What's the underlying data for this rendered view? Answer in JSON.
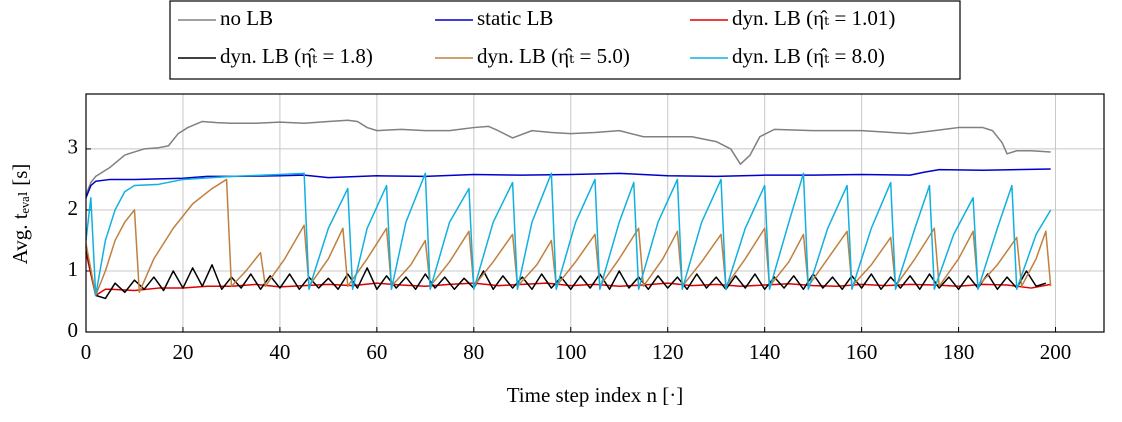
{
  "chart_data": {
    "type": "line",
    "xlabel": "Time step index n [·]",
    "ylabel": "Avg. tₑᵥₐₗ [s]",
    "xlim": [
      0,
      210
    ],
    "xticks": [
      0,
      20,
      40,
      60,
      80,
      100,
      120,
      140,
      160,
      180,
      200
    ],
    "ylim": [
      0,
      3.9
    ],
    "yticks": [
      0,
      1,
      2,
      3
    ],
    "grid": true,
    "legend": "top",
    "series": [
      {
        "name": "no LB",
        "color": "#808080",
        "x": [
          0,
          1,
          2,
          3,
          5,
          8,
          10,
          12,
          15,
          17,
          19,
          21,
          24,
          27,
          30,
          35,
          40,
          45,
          50,
          54,
          56,
          58,
          60,
          65,
          70,
          75,
          80,
          83,
          85,
          88,
          92,
          96,
          100,
          105,
          110,
          115,
          120,
          125,
          130,
          133,
          135,
          137,
          139,
          142,
          150,
          160,
          170,
          175,
          180,
          185,
          187,
          189,
          190,
          192,
          195,
          199
        ],
        "values": [
          2.25,
          2.45,
          2.55,
          2.6,
          2.7,
          2.9,
          2.95,
          3.0,
          3.02,
          3.05,
          3.25,
          3.35,
          3.45,
          3.43,
          3.42,
          3.42,
          3.44,
          3.42,
          3.45,
          3.47,
          3.45,
          3.35,
          3.3,
          3.32,
          3.3,
          3.3,
          3.35,
          3.37,
          3.3,
          3.18,
          3.3,
          3.27,
          3.25,
          3.27,
          3.3,
          3.2,
          3.2,
          3.2,
          3.12,
          3.0,
          2.75,
          2.9,
          3.2,
          3.32,
          3.3,
          3.3,
          3.25,
          3.3,
          3.35,
          3.35,
          3.3,
          3.1,
          2.92,
          2.97,
          2.97,
          2.95
        ]
      },
      {
        "name": "static LB",
        "color": "#0000cc",
        "x": [
          0,
          1,
          2,
          5,
          10,
          20,
          25,
          30,
          40,
          45,
          50,
          60,
          70,
          80,
          90,
          100,
          110,
          120,
          130,
          140,
          150,
          160,
          170,
          173,
          176,
          185,
          199
        ],
        "values": [
          2.2,
          2.4,
          2.47,
          2.5,
          2.5,
          2.52,
          2.55,
          2.55,
          2.56,
          2.57,
          2.53,
          2.56,
          2.55,
          2.58,
          2.57,
          2.58,
          2.6,
          2.56,
          2.55,
          2.57,
          2.57,
          2.58,
          2.57,
          2.62,
          2.66,
          2.65,
          2.67
        ]
      },
      {
        "name": "dyn. LB (η̂ₜ = 1.01)",
        "color": "#e00000",
        "x": [
          0,
          2,
          4,
          5,
          10,
          15,
          20,
          25,
          30,
          35,
          40,
          45,
          50,
          55,
          60,
          65,
          70,
          75,
          80,
          85,
          90,
          95,
          100,
          105,
          110,
          115,
          120,
          125,
          130,
          135,
          140,
          145,
          150,
          155,
          160,
          165,
          170,
          175,
          180,
          185,
          190,
          195,
          199
        ],
        "values": [
          1.3,
          0.6,
          0.7,
          0.7,
          0.68,
          0.72,
          0.72,
          0.75,
          0.75,
          0.78,
          0.74,
          0.76,
          0.78,
          0.76,
          0.8,
          0.77,
          0.75,
          0.78,
          0.8,
          0.76,
          0.78,
          0.8,
          0.76,
          0.78,
          0.75,
          0.77,
          0.8,
          0.76,
          0.78,
          0.75,
          0.77,
          0.79,
          0.76,
          0.75,
          0.78,
          0.76,
          0.78,
          0.77,
          0.75,
          0.78,
          0.77,
          0.72,
          0.78
        ]
      },
      {
        "name": "dyn. LB (η̂ₜ = 1.8)",
        "color": "#000000",
        "x": [
          0,
          2,
          4,
          6,
          8,
          10,
          12,
          14,
          16,
          18,
          20,
          22,
          24,
          26,
          28,
          30,
          32,
          34,
          36,
          38,
          40,
          42,
          44,
          46,
          48,
          50,
          52,
          54,
          56,
          58,
          60,
          62,
          64,
          66,
          68,
          70,
          72,
          74,
          76,
          78,
          80,
          82,
          84,
          86,
          88,
          90,
          92,
          94,
          96,
          98,
          100,
          102,
          104,
          106,
          108,
          110,
          112,
          114,
          116,
          118,
          120,
          122,
          124,
          126,
          128,
          130,
          132,
          134,
          136,
          138,
          140,
          142,
          144,
          146,
          148,
          150,
          152,
          154,
          156,
          158,
          160,
          162,
          164,
          166,
          168,
          170,
          172,
          174,
          176,
          178,
          180,
          182,
          184,
          186,
          188,
          190,
          192,
          194,
          196,
          198
        ],
        "values": [
          1.4,
          0.6,
          0.55,
          0.8,
          0.65,
          0.85,
          0.7,
          0.9,
          0.68,
          1.0,
          0.72,
          1.05,
          0.75,
          1.1,
          0.7,
          0.9,
          0.72,
          0.95,
          0.7,
          0.92,
          0.72,
          0.95,
          0.7,
          0.9,
          0.72,
          0.88,
          0.7,
          0.95,
          0.72,
          1.05,
          0.7,
          0.92,
          0.72,
          0.9,
          0.7,
          0.95,
          0.72,
          0.9,
          0.7,
          0.88,
          0.72,
          1.0,
          0.7,
          0.92,
          0.72,
          0.9,
          0.7,
          0.95,
          0.72,
          0.9,
          0.7,
          0.92,
          0.72,
          0.95,
          0.7,
          1.0,
          0.72,
          0.9,
          0.7,
          0.92,
          0.72,
          0.9,
          0.7,
          0.95,
          0.72,
          0.9,
          0.7,
          0.92,
          0.72,
          0.95,
          0.7,
          0.9,
          0.72,
          0.92,
          0.7,
          0.95,
          0.72,
          0.9,
          0.7,
          0.92,
          0.72,
          0.95,
          0.7,
          0.9,
          0.72,
          0.92,
          0.7,
          0.95,
          0.72,
          0.9,
          0.7,
          0.92,
          0.72,
          0.95,
          0.7,
          0.9,
          0.72,
          1.0,
          0.75,
          0.8
        ]
      },
      {
        "name": "dyn. LB (η̂ₜ = 5.0)",
        "color": "#c08040",
        "x": [
          0,
          2,
          4,
          6,
          8,
          10,
          11,
          14,
          18,
          22,
          26,
          29,
          30,
          33,
          36,
          37,
          41,
          45,
          46,
          50,
          53,
          54,
          58,
          62,
          63,
          67,
          70,
          71,
          75,
          79,
          80,
          84,
          88,
          89,
          93,
          96,
          97,
          101,
          105,
          106,
          110,
          114,
          115,
          119,
          122,
          123,
          127,
          131,
          132,
          136,
          140,
          141,
          145,
          148,
          149,
          153,
          157,
          158,
          162,
          166,
          167,
          171,
          175,
          176,
          180,
          183,
          184,
          188,
          192,
          193,
          196,
          198,
          199
        ],
        "values": [
          1.45,
          0.6,
          1.0,
          1.5,
          1.8,
          2.0,
          0.65,
          1.2,
          1.7,
          2.1,
          2.35,
          2.5,
          0.75,
          1.0,
          1.3,
          0.75,
          1.2,
          1.75,
          0.75,
          1.2,
          1.7,
          0.75,
          1.2,
          1.7,
          0.75,
          1.1,
          1.5,
          0.75,
          1.15,
          1.65,
          0.75,
          1.15,
          1.6,
          0.75,
          1.1,
          1.5,
          0.75,
          1.15,
          1.6,
          0.75,
          1.2,
          1.7,
          0.75,
          1.2,
          1.65,
          0.75,
          1.15,
          1.6,
          0.75,
          1.2,
          1.7,
          0.75,
          1.15,
          1.6,
          0.75,
          1.2,
          1.65,
          0.75,
          1.1,
          1.55,
          0.75,
          1.2,
          1.7,
          0.75,
          1.2,
          1.65,
          0.75,
          1.1,
          1.55,
          0.75,
          1.2,
          1.65,
          0.75
        ]
      },
      {
        "name": "dyn. LB (η̂ₜ = 8.0)",
        "color": "#10b0e0",
        "x": [
          0,
          1,
          2,
          4,
          6,
          8,
          10,
          15,
          20,
          30,
          40,
          45,
          46,
          50,
          54,
          55,
          58,
          62,
          63,
          66,
          70,
          71,
          75,
          79,
          80,
          84,
          88,
          89,
          92,
          96,
          97,
          101,
          105,
          106,
          110,
          113,
          114,
          118,
          122,
          123,
          127,
          131,
          132,
          136,
          140,
          141,
          145,
          148,
          149,
          153,
          157,
          158,
          162,
          166,
          167,
          171,
          174,
          175,
          179,
          183,
          184,
          188,
          191,
          192,
          196,
          199
        ],
        "values": [
          1.5,
          2.2,
          0.6,
          1.5,
          2.0,
          2.3,
          2.4,
          2.42,
          2.5,
          2.55,
          2.58,
          2.6,
          0.7,
          1.7,
          2.35,
          0.7,
          1.7,
          2.4,
          0.7,
          1.8,
          2.6,
          0.7,
          1.8,
          2.35,
          0.7,
          1.8,
          2.45,
          0.7,
          1.8,
          2.6,
          0.7,
          1.8,
          2.5,
          0.7,
          1.8,
          2.45,
          0.7,
          1.8,
          2.5,
          0.7,
          1.8,
          2.5,
          0.7,
          1.7,
          2.4,
          0.7,
          1.8,
          2.6,
          0.7,
          1.7,
          2.4,
          0.7,
          1.7,
          2.45,
          0.7,
          1.7,
          2.4,
          0.7,
          1.6,
          2.2,
          0.7,
          1.7,
          2.4,
          0.7,
          1.6,
          2.0
        ]
      }
    ]
  }
}
